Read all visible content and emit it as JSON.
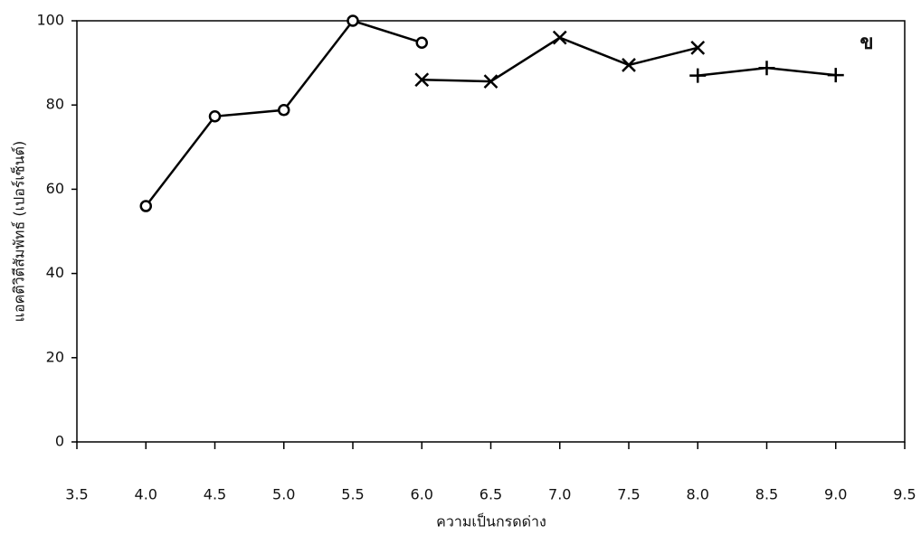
{
  "chart_data": {
    "type": "line",
    "xlabel": "ความเป็นกรดด่าง",
    "ylabel": "แอคติวิตีสัมพัทธ์ (เปอร์เซ็นต์)",
    "annotation": "ข",
    "xlim": [
      3.5,
      9.5
    ],
    "xticks": [
      3.5,
      {
        "value": 4,
        "label": "4.0"
      },
      4.5,
      {
        "value": 5,
        "label": "5.0"
      },
      5.5,
      {
        "value": 6,
        "label": "6.0"
      },
      6.5,
      {
        "value": 7,
        "label": "7.0"
      },
      7.5,
      {
        "value": 8,
        "label": "8.0"
      },
      8.5,
      {
        "value": 9,
        "label": "9.0"
      },
      9.5
    ],
    "ylim": [
      0,
      100
    ],
    "yticks": [
      0,
      20,
      40,
      60,
      80,
      100
    ],
    "series": [
      {
        "marker": "circle",
        "color": "#000000",
        "x": [
          4.0,
          4.5,
          5.0,
          5.5,
          6.0
        ],
        "values": [
          56,
          77.3,
          78.8,
          100,
          94.8
        ]
      },
      {
        "marker": "x",
        "color": "#000000",
        "x": [
          6.0,
          6.5,
          7.0,
          7.5,
          8.0
        ],
        "values": [
          86,
          85.6,
          96,
          89.5,
          93.6
        ]
      },
      {
        "marker": "plus",
        "color": "#000000",
        "x": [
          8.0,
          8.5,
          9.0
        ],
        "values": [
          87,
          88.8,
          87.1
        ]
      }
    ]
  }
}
